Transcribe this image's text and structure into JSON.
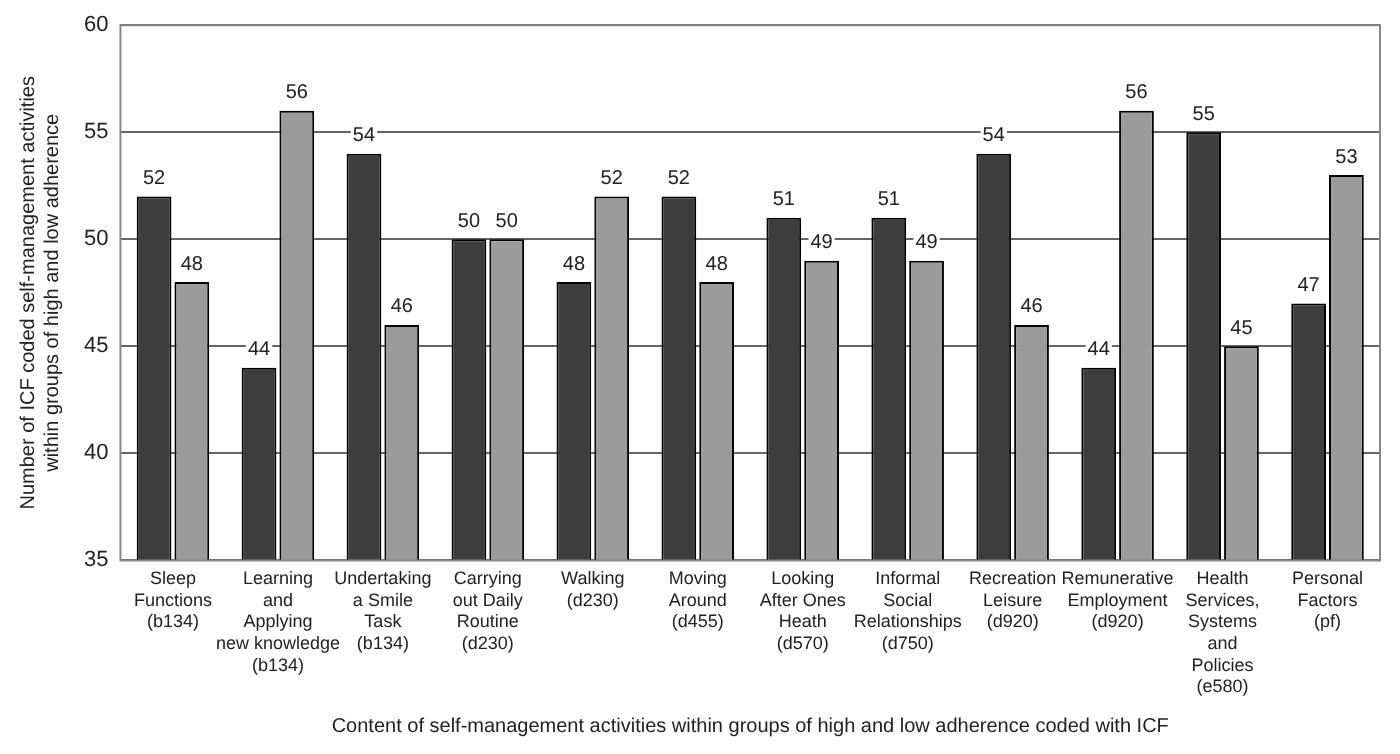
{
  "chart_data": {
    "type": "bar",
    "xlabel": "Content of self-management activities within groups of high and low adherence coded with ICF",
    "ylabel": "Number of ICF coded self-management activities\nwithin groups of high and low adherence",
    "categories": [
      "Sleep\nFunctions\n(b134)",
      "Learning\nand\nApplying\nnew knowledge\n(b134)",
      "Undertaking\na Smile\nTask\n(b134)",
      "Carrying\nout Daily\nRoutine\n(d230)",
      "Walking\n(d230)",
      "Moving\nAround\n(d455)",
      "Looking\nAfter Ones\nHeath\n(d570)",
      "Informal\nSocial\nRelationships\n(d750)",
      "Recreation\nLeisure\n(d920)",
      "Remunerative\nEmployment\n(d920)",
      "Health\nServices,\nSystems\nand\nPolicies\n(e580)",
      "Personal\nFactors\n(pf)"
    ],
    "series": [
      {
        "color": "#3d3d3d",
        "values": [
          52,
          44,
          54,
          50,
          48,
          52,
          51,
          51,
          54,
          44,
          55,
          47
        ]
      },
      {
        "color": "#9b9b9b",
        "values": [
          48,
          56,
          46,
          50,
          52,
          48,
          49,
          49,
          46,
          56,
          45,
          53
        ]
      }
    ],
    "ylim": [
      35,
      60
    ],
    "yticks": [
      35,
      40,
      45,
      50,
      55,
      60
    ],
    "grid": "y",
    "data_labels": true,
    "legend": false
  }
}
